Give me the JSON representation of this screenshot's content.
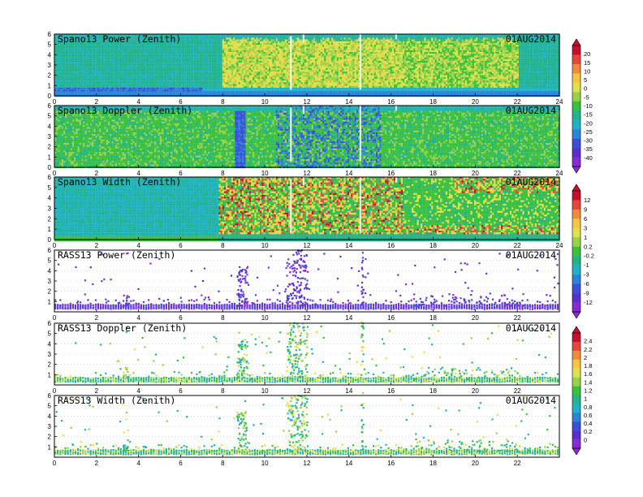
{
  "chart_data": [
    {
      "type": "heatmap",
      "title": "Spano13 Power (Zenith)",
      "date": "01AUG2014",
      "xlim": [
        0,
        24
      ],
      "ylim": [
        0,
        6
      ],
      "xticks": [
        "0",
        "2",
        "4",
        "6",
        "8",
        "10",
        "12",
        "14",
        "16",
        "18",
        "20",
        "22",
        "24"
      ],
      "yticks": [
        "0",
        "1",
        "2",
        "3",
        "4",
        "5",
        "6"
      ],
      "colorbar": "power"
    },
    {
      "type": "heatmap",
      "title": "Spano13 Doppler (Zenith)",
      "date": "01AUG2014",
      "xlim": [
        0,
        24
      ],
      "ylim": [
        0,
        6
      ],
      "xticks": [
        "0",
        "2",
        "4",
        "6",
        "8",
        "10",
        "12",
        "14",
        "16",
        "18",
        "20",
        "22",
        "24"
      ],
      "yticks": [
        "0",
        "1",
        "2",
        "3",
        "4",
        "5",
        "6"
      ],
      "colorbar": "power"
    },
    {
      "type": "heatmap",
      "title": "Spano13 Width (Zenith)",
      "date": "01AUG2014",
      "xlim": [
        0,
        24
      ],
      "ylim": [
        0,
        6
      ],
      "xticks": [
        "0",
        "2",
        "4",
        "6",
        "8",
        "10",
        "12",
        "14",
        "16",
        "18",
        "20",
        "22",
        "24"
      ],
      "yticks": [
        "0",
        "1",
        "2",
        "3",
        "4",
        "5",
        "6"
      ],
      "colorbar": "width"
    },
    {
      "type": "scatter",
      "title": "RASS13 Power (Zenith)",
      "date": "01AUG2014",
      "xlim": [
        0,
        24
      ],
      "ylim": [
        0,
        6
      ],
      "xticks": [
        "0",
        "2",
        "4",
        "6",
        "8",
        "10",
        "12",
        "14",
        "16",
        "18",
        "20",
        "22"
      ],
      "yticks": [
        "1",
        "2",
        "3",
        "4",
        "5",
        "6"
      ],
      "colorbar": "width"
    },
    {
      "type": "scatter",
      "title": "RASS13 Doppler (Zenith)",
      "date": "01AUG2014",
      "xlim": [
        0,
        24
      ],
      "ylim": [
        0,
        6
      ],
      "xticks": [
        "0",
        "2",
        "4",
        "6",
        "8",
        "10",
        "12",
        "14",
        "16",
        "18",
        "20",
        "22"
      ],
      "yticks": [
        "1",
        "2",
        "3",
        "4",
        "5",
        "6"
      ],
      "colorbar": "rass"
    },
    {
      "type": "scatter",
      "title": "RASS13 Width (Zenith)",
      "date": "01AUG2014",
      "xlim": [
        0,
        24
      ],
      "ylim": [
        0,
        6
      ],
      "xticks": [
        "0",
        "2",
        "4",
        "6",
        "8",
        "10",
        "12",
        "14",
        "16",
        "18",
        "20",
        "22"
      ],
      "yticks": [
        "1",
        "2",
        "3",
        "4",
        "5",
        "6"
      ],
      "colorbar": "rass"
    }
  ],
  "colorbars": {
    "power": {
      "labels": [
        "20",
        "15",
        "10",
        "5",
        "0",
        "-5",
        "-10",
        "-15",
        "-20",
        "-25",
        "-30",
        "-35",
        "-40"
      ],
      "colors": [
        "#c8102e",
        "#e8463a",
        "#f08c3c",
        "#f5c646",
        "#dfe04a",
        "#9ad14a",
        "#3cc13c",
        "#23b48c",
        "#20b2c8",
        "#2a84d8",
        "#3a50d8",
        "#5a2fd0",
        "#8a2bd8"
      ]
    },
    "width": {
      "labels": [
        "12",
        "9",
        "6",
        "3",
        "1",
        "0.2",
        "-0.2",
        "-1",
        "-3",
        "-6",
        "-9",
        "-12"
      ],
      "colors": [
        "#c8102e",
        "#e8463a",
        "#f08c3c",
        "#f5c646",
        "#dfe04a",
        "#9ad14a",
        "#3cc13c",
        "#23b48c",
        "#20b2c8",
        "#2a84d8",
        "#3a50d8",
        "#5a2fd0",
        "#8a2bd8"
      ]
    },
    "rass": {
      "labels": [
        "2.4",
        "2.2",
        "2",
        "1.8",
        "1.6",
        "1.4",
        "1.2",
        "1",
        "0.8",
        "0.6",
        "0.4",
        "0.2",
        "0"
      ],
      "colors": [
        "#c8102e",
        "#e8463a",
        "#f08c3c",
        "#f5c646",
        "#dfe04a",
        "#9ad14a",
        "#3cc13c",
        "#23b48c",
        "#20b2c8",
        "#2a84d8",
        "#3a50d8",
        "#5a2fd0",
        "#8a2bd8"
      ]
    }
  }
}
